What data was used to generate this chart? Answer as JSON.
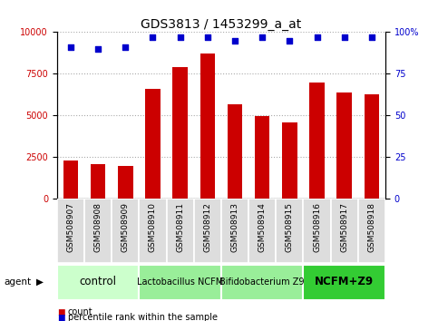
{
  "title": "GDS3813 / 1453299_a_at",
  "samples": [
    "GSM508907",
    "GSM508908",
    "GSM508909",
    "GSM508910",
    "GSM508911",
    "GSM508912",
    "GSM508913",
    "GSM508914",
    "GSM508915",
    "GSM508916",
    "GSM508917",
    "GSM508918"
  ],
  "counts": [
    2300,
    2100,
    2000,
    6600,
    7900,
    8700,
    5700,
    4950,
    4600,
    7000,
    6400,
    6300
  ],
  "percentiles": [
    91,
    90,
    91,
    97,
    97,
    97,
    95,
    97,
    95,
    97,
    97,
    97
  ],
  "bar_color": "#cc0000",
  "dot_color": "#0000cc",
  "ylim_left": [
    0,
    10000
  ],
  "ylim_right": [
    0,
    100
  ],
  "yticks_left": [
    0,
    2500,
    5000,
    7500,
    10000
  ],
  "yticks_right": [
    0,
    25,
    50,
    75,
    100
  ],
  "groups": [
    {
      "label": "control",
      "start": 0,
      "end": 3,
      "color": "#ccffcc",
      "fontsize": 8.5,
      "bold": false
    },
    {
      "label": "Lactobacillus NCFM",
      "start": 3,
      "end": 6,
      "color": "#99ee99",
      "fontsize": 7.0,
      "bold": false
    },
    {
      "label": "Bifidobacterium Z9",
      "start": 6,
      "end": 9,
      "color": "#99ee99",
      "fontsize": 7.0,
      "bold": false
    },
    {
      "label": "NCFM+Z9",
      "start": 9,
      "end": 12,
      "color": "#33cc33",
      "fontsize": 8.5,
      "bold": true
    }
  ],
  "legend_items": [
    {
      "label": "count",
      "color": "#cc0000"
    },
    {
      "label": "percentile rank within the sample",
      "color": "#0000cc"
    }
  ],
  "title_fontsize": 10,
  "tick_fontsize": 7,
  "label_fontsize": 6.5,
  "grid_color": "#aaaaaa",
  "background_color": "#ffffff",
  "agent_label": "agent",
  "cell_bg": "#dddddd"
}
